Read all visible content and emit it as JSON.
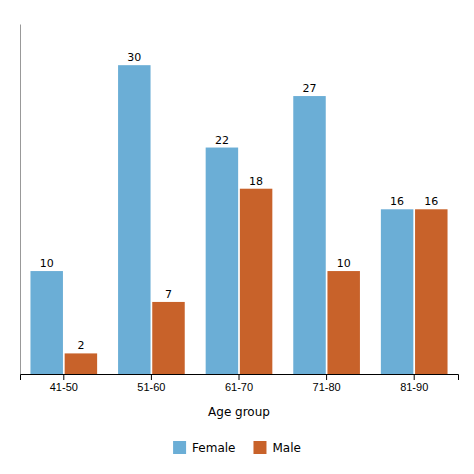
{
  "chart_data": {
    "type": "bar",
    "x_label": "Age group",
    "categories": [
      "41-50",
      "51-60",
      "61-70",
      "71-80",
      "81-90"
    ],
    "series": [
      {
        "name": "Female",
        "color": "#6BAED6",
        "values": [
          10,
          30,
          22,
          27,
          16
        ]
      },
      {
        "name": "Male",
        "color": "#C8622A",
        "values": [
          2,
          7,
          18,
          10,
          16
        ]
      }
    ],
    "ylim": [
      0,
      34
    ],
    "yticks": [],
    "grid": false,
    "legend": "bottom",
    "data_labels": true,
    "tick_labels": "x"
  }
}
